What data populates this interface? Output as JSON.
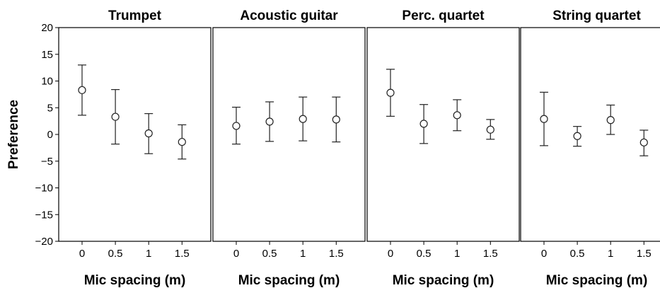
{
  "chart_data": [
    {
      "type": "scatter",
      "title": "Trumpet",
      "xlabel": "Mic spacing (m)",
      "ylabel": "Preference",
      "categories": [
        "0",
        "0.5",
        "1",
        "1.5"
      ],
      "values": [
        8.3,
        3.3,
        0.2,
        -1.4
      ],
      "error_low": [
        3.6,
        -1.8,
        -3.6,
        -4.6
      ],
      "error_high": [
        13.0,
        8.4,
        3.9,
        1.8
      ],
      "ylim": [
        -20,
        20
      ],
      "yticks": [
        "20",
        "15",
        "10",
        "5",
        "0",
        "-5",
        "-10",
        "-15",
        "-20"
      ],
      "grid": false
    },
    {
      "type": "scatter",
      "title": "Acoustic guitar",
      "xlabel": "Mic spacing (m)",
      "categories": [
        "0",
        "0.5",
        "1",
        "1.5"
      ],
      "values": [
        1.6,
        2.4,
        2.9,
        2.8
      ],
      "error_low": [
        -1.8,
        -1.3,
        -1.2,
        -1.4
      ],
      "error_high": [
        5.1,
        6.1,
        7.0,
        7.0
      ],
      "ylim": [
        -20,
        20
      ],
      "grid": false
    },
    {
      "type": "scatter",
      "title": "Perc. quartet",
      "xlabel": "Mic spacing (m)",
      "categories": [
        "0",
        "0.5",
        "1",
        "1.5"
      ],
      "values": [
        7.8,
        2.0,
        3.6,
        0.9
      ],
      "error_low": [
        3.4,
        -1.7,
        0.7,
        -0.9
      ],
      "error_high": [
        12.2,
        5.6,
        6.5,
        2.8
      ],
      "ylim": [
        -20,
        20
      ],
      "grid": false
    },
    {
      "type": "scatter",
      "title": "String quartet",
      "xlabel": "Mic spacing (m)",
      "categories": [
        "0",
        "0.5",
        "1",
        "1.5"
      ],
      "values": [
        2.9,
        -0.3,
        2.7,
        -1.5
      ],
      "error_low": [
        -2.1,
        -2.2,
        0.0,
        -4.0
      ],
      "error_high": [
        7.9,
        1.5,
        5.5,
        0.8
      ],
      "ylim": [
        -20,
        20
      ],
      "grid": false
    }
  ]
}
